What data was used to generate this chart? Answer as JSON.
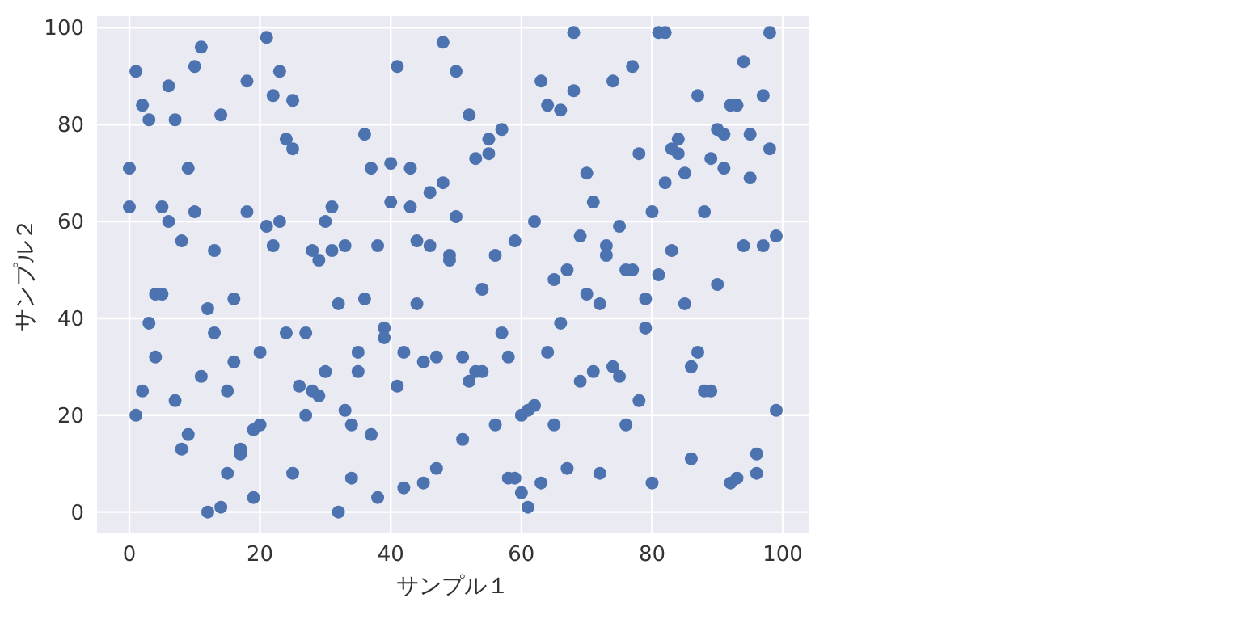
{
  "chart_data": {
    "type": "scatter",
    "xlabel": "サンプル１",
    "ylabel": "サンプル２",
    "xlim": [
      -4.95,
      103.95
    ],
    "ylim": [
      -4.4,
      102.4
    ],
    "xticks": [
      0,
      20,
      40,
      60,
      80,
      100
    ],
    "yticks": [
      0,
      20,
      40,
      60,
      80,
      100
    ],
    "grid": true,
    "marker": "circle",
    "series": [
      {
        "color": "#4c72b0",
        "x": [
          0,
          0,
          1,
          1,
          2,
          2,
          3,
          3,
          4,
          4,
          5,
          5,
          6,
          6,
          7,
          7,
          8,
          8,
          9,
          9,
          10,
          10,
          11,
          11,
          12,
          12,
          13,
          13,
          14,
          14,
          15,
          15,
          16,
          16,
          17,
          17,
          18,
          18,
          19,
          19,
          20,
          20,
          21,
          21,
          22,
          22,
          23,
          23,
          24,
          24,
          25,
          25,
          25,
          26,
          27,
          27,
          28,
          28,
          29,
          29,
          30,
          30,
          31,
          31,
          32,
          32,
          33,
          33,
          34,
          34,
          35,
          35,
          36,
          36,
          37,
          37,
          38,
          38,
          39,
          39,
          40,
          40,
          41,
          41,
          42,
          42,
          43,
          43,
          44,
          44,
          45,
          45,
          46,
          46,
          47,
          47,
          48,
          48,
          49,
          49,
          50,
          50,
          51,
          51,
          52,
          52,
          53,
          53,
          54,
          54,
          55,
          55,
          56,
          56,
          57,
          57,
          58,
          58,
          59,
          59,
          60,
          60,
          61,
          61,
          62,
          62,
          63,
          63,
          64,
          64,
          65,
          65,
          66,
          66,
          67,
          67,
          68,
          68,
          69,
          69,
          70,
          70,
          71,
          71,
          72,
          72,
          73,
          73,
          74,
          74,
          75,
          75,
          76,
          76,
          77,
          77,
          78,
          78,
          79,
          79,
          80,
          80,
          81,
          81,
          82,
          82,
          83,
          83,
          84,
          84,
          85,
          85,
          86,
          86,
          87,
          87,
          88,
          88,
          89,
          89,
          90,
          90,
          91,
          91,
          92,
          92,
          93,
          93,
          94,
          94,
          95,
          95,
          96,
          96,
          97,
          97,
          98,
          98,
          99,
          99
        ],
        "values": [
          71,
          63,
          91,
          20,
          84,
          25,
          81,
          39,
          45,
          32,
          45,
          63,
          88,
          60,
          81,
          23,
          56,
          13,
          71,
          16,
          92,
          62,
          96,
          28,
          42,
          0,
          54,
          37,
          82,
          1,
          25,
          8,
          44,
          31,
          13,
          12,
          89,
          62,
          17,
          3,
          18,
          33,
          98,
          59,
          86,
          55,
          91,
          60,
          77,
          37,
          75,
          85,
          8,
          26,
          37,
          20,
          54,
          25,
          52,
          24,
          29,
          60,
          63,
          54,
          0,
          43,
          21,
          55,
          18,
          7,
          33,
          29,
          78,
          44,
          16,
          71,
          55,
          3,
          38,
          36,
          72,
          64,
          92,
          26,
          33,
          5,
          71,
          63,
          56,
          43,
          6,
          31,
          55,
          66,
          9,
          32,
          97,
          68,
          53,
          52,
          91,
          61,
          32,
          15,
          82,
          27,
          73,
          29,
          29,
          46,
          77,
          74,
          53,
          18,
          79,
          37,
          32,
          7,
          7,
          56,
          4,
          20,
          1,
          21,
          60,
          22,
          89,
          6,
          84,
          33,
          48,
          18,
          83,
          39,
          50,
          9,
          99,
          87,
          57,
          27,
          70,
          45,
          64,
          29,
          43,
          8,
          53,
          55,
          89,
          30,
          59,
          28,
          50,
          18,
          92,
          50,
          74,
          23,
          44,
          38,
          62,
          6,
          99,
          49,
          99,
          68,
          75,
          54,
          77,
          74,
          70,
          43,
          11,
          30,
          86,
          33,
          62,
          25,
          25,
          73,
          79,
          47,
          78,
          71,
          84,
          6,
          84,
          7,
          93,
          55,
          78,
          69,
          12,
          8,
          86,
          55,
          99,
          75,
          57,
          21
        ]
      }
    ]
  }
}
